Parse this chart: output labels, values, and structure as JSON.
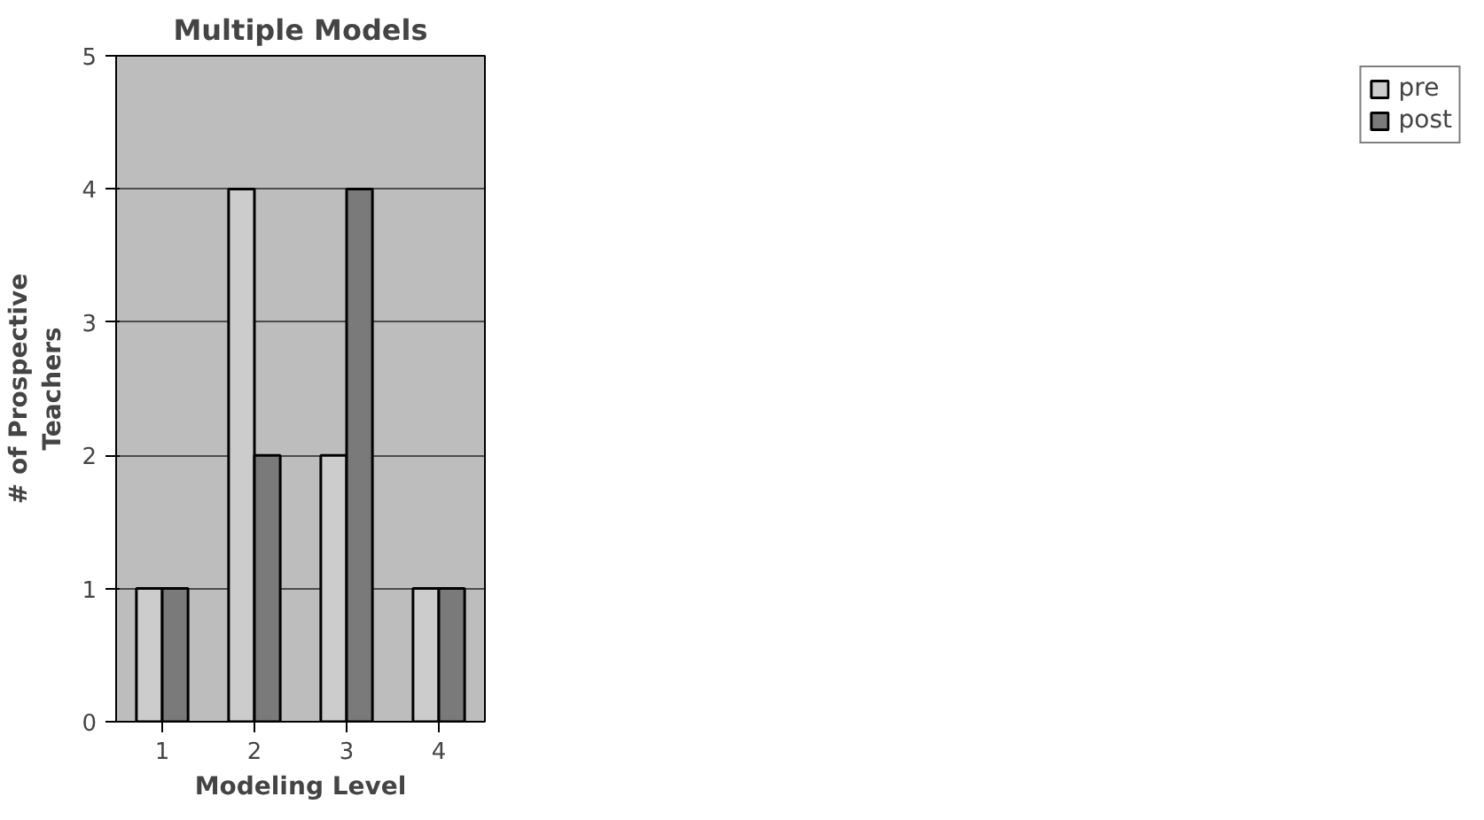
{
  "chart_data": {
    "type": "bar",
    "title": "Multiple Models",
    "xlabel": "Modeling Level",
    "ylabel": "# of Prospective\nTeachers",
    "categories": [
      "1",
      "2",
      "3",
      "4"
    ],
    "series": [
      {
        "name": "pre",
        "color": "#cccccc",
        "values": [
          1,
          4,
          2,
          1
        ]
      },
      {
        "name": "post",
        "color": "#7a7a7a",
        "values": [
          1,
          2,
          4,
          1
        ]
      }
    ],
    "ylim": [
      0,
      5
    ],
    "yticks": [
      0,
      1,
      2,
      3,
      4,
      5
    ],
    "grid": "y",
    "legend": "right"
  }
}
